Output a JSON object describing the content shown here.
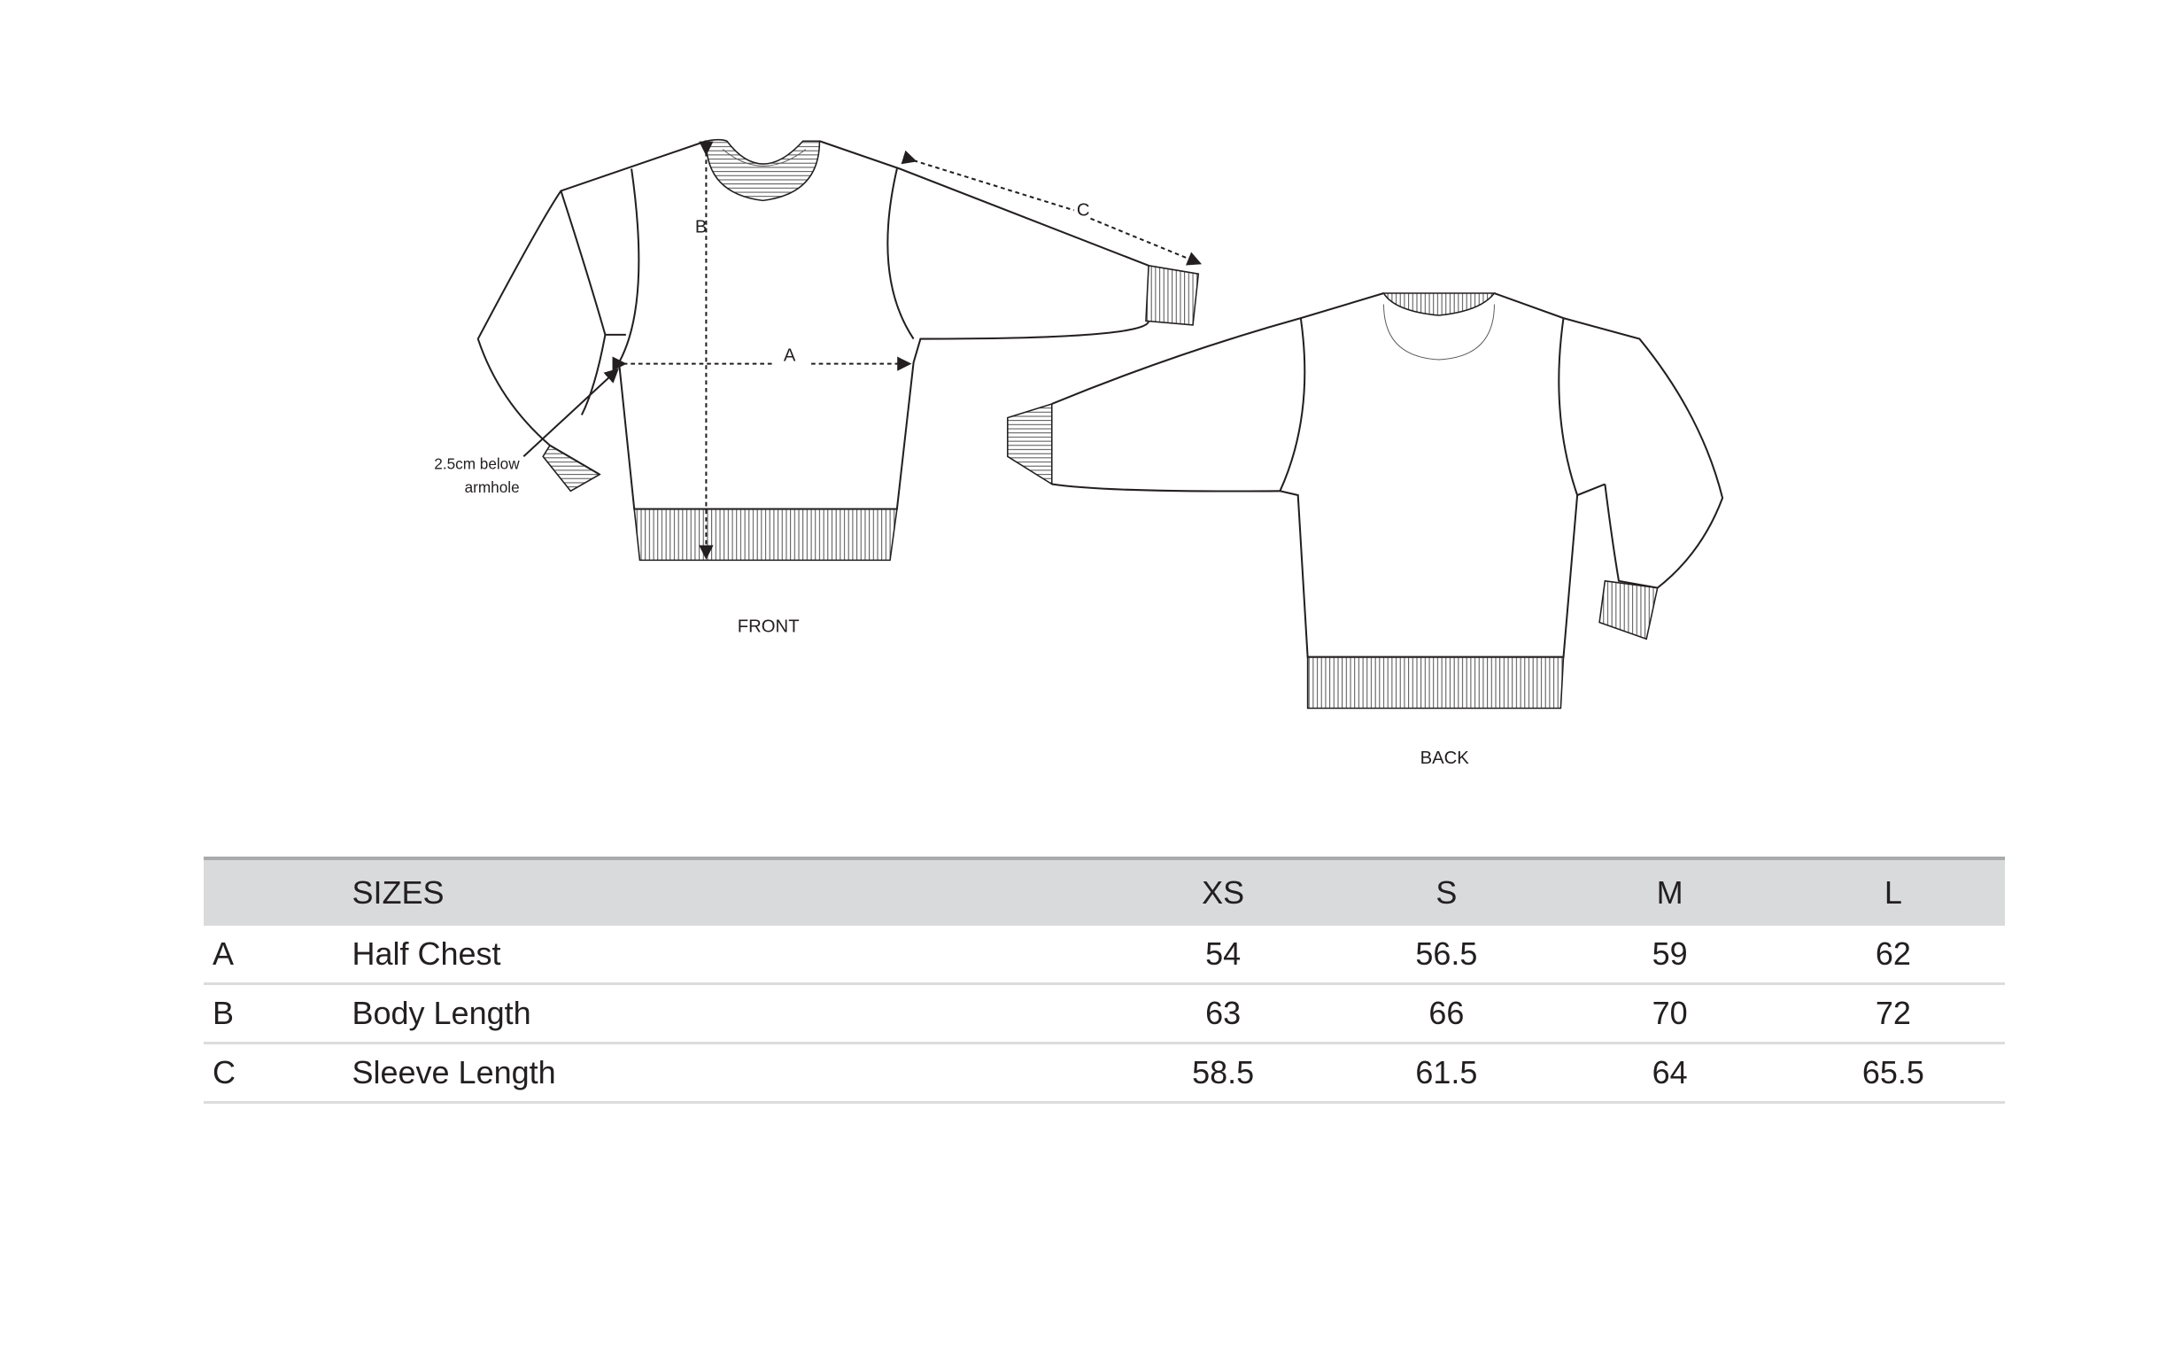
{
  "diagram": {
    "front_label": "FRONT",
    "back_label": "BACK",
    "measure_a": "A",
    "measure_b": "B",
    "measure_c": "C",
    "note_line1": "2.5cm below",
    "note_line2": "armhole"
  },
  "table": {
    "header_label": "SIZES",
    "sizes": [
      "XS",
      "S",
      "M",
      "L"
    ],
    "rows": [
      {
        "code": "A",
        "name": "Half Chest",
        "values": [
          "54",
          "56.5",
          "59",
          "62"
        ]
      },
      {
        "code": "B",
        "name": "Body Length",
        "values": [
          "63",
          "66",
          "70",
          "72"
        ]
      },
      {
        "code": "C",
        "name": "Sleeve Length",
        "values": [
          "58.5",
          "61.5",
          "64",
          "65.5"
        ]
      }
    ]
  },
  "colors": {
    "header_bg": "#d9dadc",
    "text": "#231f20"
  }
}
